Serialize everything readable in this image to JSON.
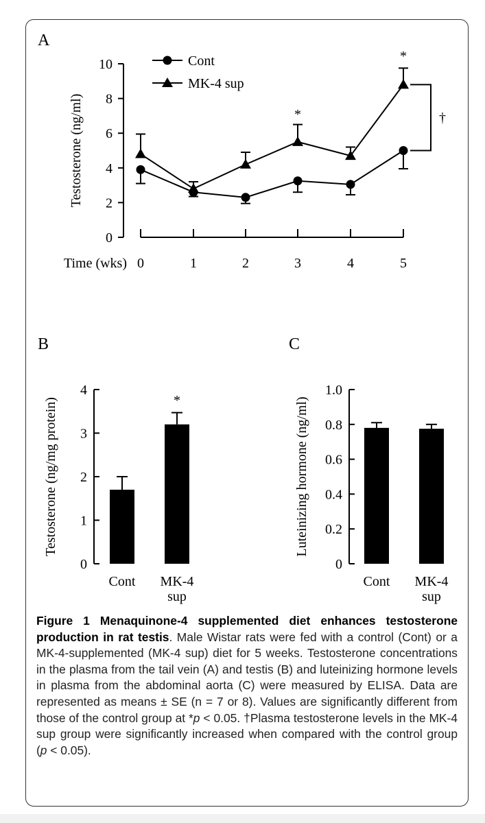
{
  "chart_data": [
    {
      "panel": "A",
      "type": "line",
      "xlabel": "Time (wks)",
      "ylabel": "Testosterone (ng/ml)",
      "ylim": [
        0,
        10
      ],
      "yticks": [
        "0",
        "2",
        "4",
        "6",
        "8",
        "10"
      ],
      "categories": [
        "0",
        "1",
        "2",
        "3",
        "4",
        "5"
      ],
      "series": [
        {
          "name": "Cont",
          "marker": "circle",
          "values": [
            3.9,
            2.6,
            2.3,
            3.25,
            3.05,
            5.0
          ],
          "errors": [
            0.8,
            0.25,
            0.35,
            0.65,
            0.6,
            1.05
          ]
        },
        {
          "name": "MK-4 sup",
          "marker": "triangle",
          "values": [
            4.8,
            2.8,
            4.2,
            5.5,
            4.7,
            8.8
          ],
          "errors": [
            1.15,
            0.4,
            0.7,
            1.0,
            0.5,
            0.95
          ]
        }
      ],
      "annotations": [
        {
          "text": "*",
          "category": "3"
        },
        {
          "text": "*",
          "category": "5"
        },
        {
          "text": "†",
          "bracket": "between series at week 5"
        }
      ]
    },
    {
      "panel": "B",
      "type": "bar",
      "ylabel": "Testosterone (ng/mg protein)",
      "ylim": [
        0,
        4
      ],
      "yticks": [
        "0",
        "1",
        "2",
        "3",
        "4"
      ],
      "categories": [
        [
          "Cont"
        ],
        [
          "MK-4",
          "sup"
        ]
      ],
      "values": [
        1.7,
        3.2
      ],
      "errors": [
        0.3,
        0.27
      ],
      "annotations": [
        {
          "text": "*",
          "category": 1
        }
      ]
    },
    {
      "panel": "C",
      "type": "bar",
      "ylabel": "Luteinizing hormone (ng/ml)",
      "ylim": [
        0,
        1.0
      ],
      "yticks": [
        "0",
        "0.2",
        "0.4",
        "0.6",
        "0.8",
        "1.0"
      ],
      "categories": [
        [
          "Cont"
        ],
        [
          "MK-4",
          "sup"
        ]
      ],
      "values": [
        0.78,
        0.775
      ],
      "errors": [
        0.03,
        0.025
      ]
    }
  ],
  "caption": {
    "label": "Figure 1",
    "title": "Menaquinone-4 supplemented diet enhances testosterone production in rat testis",
    "body_1": ". Male Wistar rats were fed with a control (Cont) or a MK-4-supplemented (MK-4 sup) diet for 5 weeks. Testosterone concentrations in the plasma from the tail vein (A) and testis (B) and luteinizing hormone levels in plasma from the abdominal aorta (C) were measured by ELISA. Data are represented as means ± SE (n = 7 or 8). Values are significantly different from those of the control group at *",
    "p1": "p",
    "body_2": " < 0.05. †Plasma testosterone levels in the MK-4 sup group were significantly increased when compared with the control group (",
    "p2": "p",
    "body_3": " < 0.05)."
  }
}
